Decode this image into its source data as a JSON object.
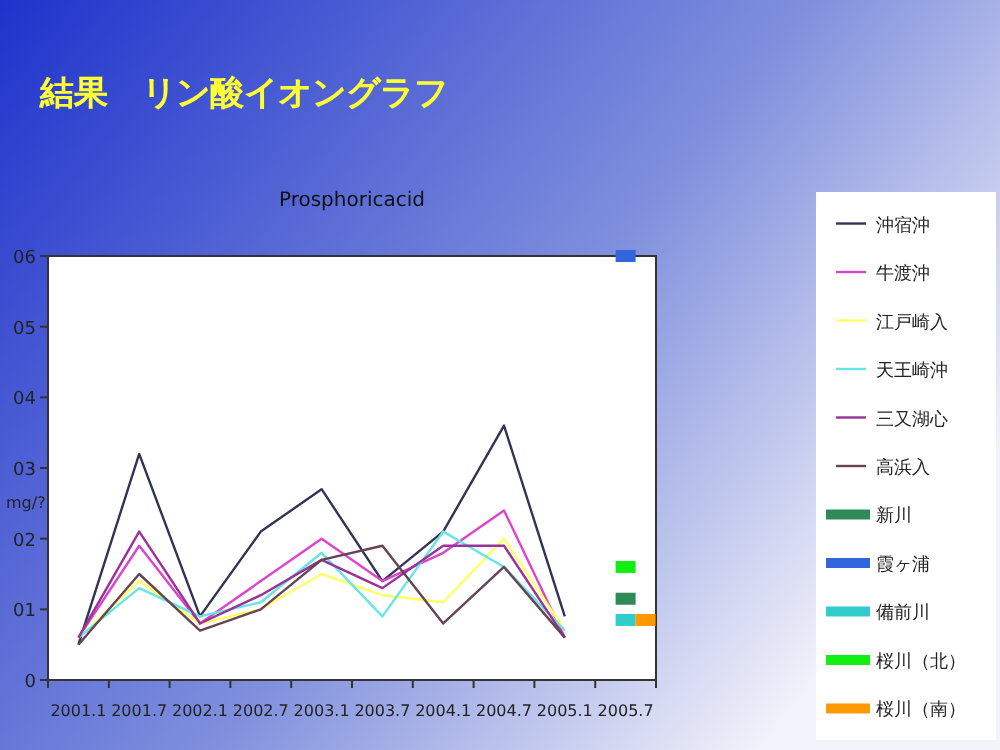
{
  "chart_data": {
    "type": "line",
    "title": "結果　リン酸イオングラフ",
    "subtitle": "Prosphoricacid",
    "ylabel": "mg/?",
    "categories": [
      "2001.1",
      "2001.7",
      "2002.1",
      "2002.7",
      "2003.1",
      "2003.7",
      "2004.1",
      "2004.7",
      "2005.1",
      "2005.7"
    ],
    "ylim": [
      0,
      6
    ],
    "yticks": [
      0,
      {
        "value": 1,
        "label": "01"
      },
      {
        "value": 2,
        "label": "02"
      },
      {
        "value": 3,
        "label": "03"
      },
      {
        "value": 4,
        "label": "04"
      },
      {
        "value": 5,
        "label": "05"
      },
      {
        "value": 6,
        "label": "06"
      }
    ],
    "grid": false,
    "legend": "right",
    "series": [
      {
        "name": "沖宿沖",
        "color": "#333355",
        "values": [
          0.5,
          3.2,
          0.9,
          2.1,
          2.7,
          1.4,
          2.1,
          3.6,
          0.9,
          null
        ]
      },
      {
        "name": "牛渡沖",
        "color": "#dd44cc",
        "values": [
          0.6,
          1.9,
          0.8,
          1.4,
          2.0,
          1.4,
          1.8,
          2.4,
          0.6,
          null
        ]
      },
      {
        "name": "江戸崎入",
        "color": "#ffff66",
        "values": [
          0.6,
          1.4,
          0.8,
          1.0,
          1.5,
          1.2,
          1.1,
          2.0,
          0.7,
          null
        ]
      },
      {
        "name": "天王崎沖",
        "color": "#66e6e6",
        "values": [
          0.6,
          1.3,
          0.9,
          1.1,
          1.8,
          0.9,
          2.1,
          1.6,
          0.7,
          null
        ]
      },
      {
        "name": "三又湖心",
        "color": "#993399",
        "values": [
          0.6,
          2.1,
          0.8,
          1.2,
          1.7,
          1.3,
          1.9,
          1.9,
          0.6,
          null
        ]
      },
      {
        "name": "高浜入",
        "color": "#664455",
        "values": [
          0.5,
          1.5,
          0.7,
          1.0,
          1.7,
          1.9,
          0.8,
          1.6,
          0.6,
          null
        ]
      },
      {
        "name": "新川",
        "type": "scatter",
        "color": "#2e8b57",
        "values": [
          null,
          null,
          null,
          null,
          null,
          null,
          null,
          null,
          null,
          1.15
        ]
      },
      {
        "name": "霞ヶ浦",
        "type": "scatter",
        "color": "#3366dd",
        "values": [
          null,
          null,
          null,
          null,
          null,
          null,
          null,
          null,
          null,
          6
        ]
      },
      {
        "name": "備前川",
        "type": "scatter",
        "color": "#33cccc",
        "values": [
          null,
          null,
          null,
          null,
          null,
          null,
          null,
          null,
          null,
          0.85
        ]
      },
      {
        "name": "桜川（北）",
        "type": "scatter",
        "color": "#11ee11",
        "values": [
          null,
          null,
          null,
          null,
          null,
          null,
          null,
          null,
          null,
          1.6
        ]
      },
      {
        "name": "桜川（南）",
        "type": "scatter",
        "color": "#ff9900",
        "values": [
          null,
          null,
          null,
          null,
          null,
          null,
          null,
          null,
          null,
          0.85
        ]
      }
    ]
  }
}
